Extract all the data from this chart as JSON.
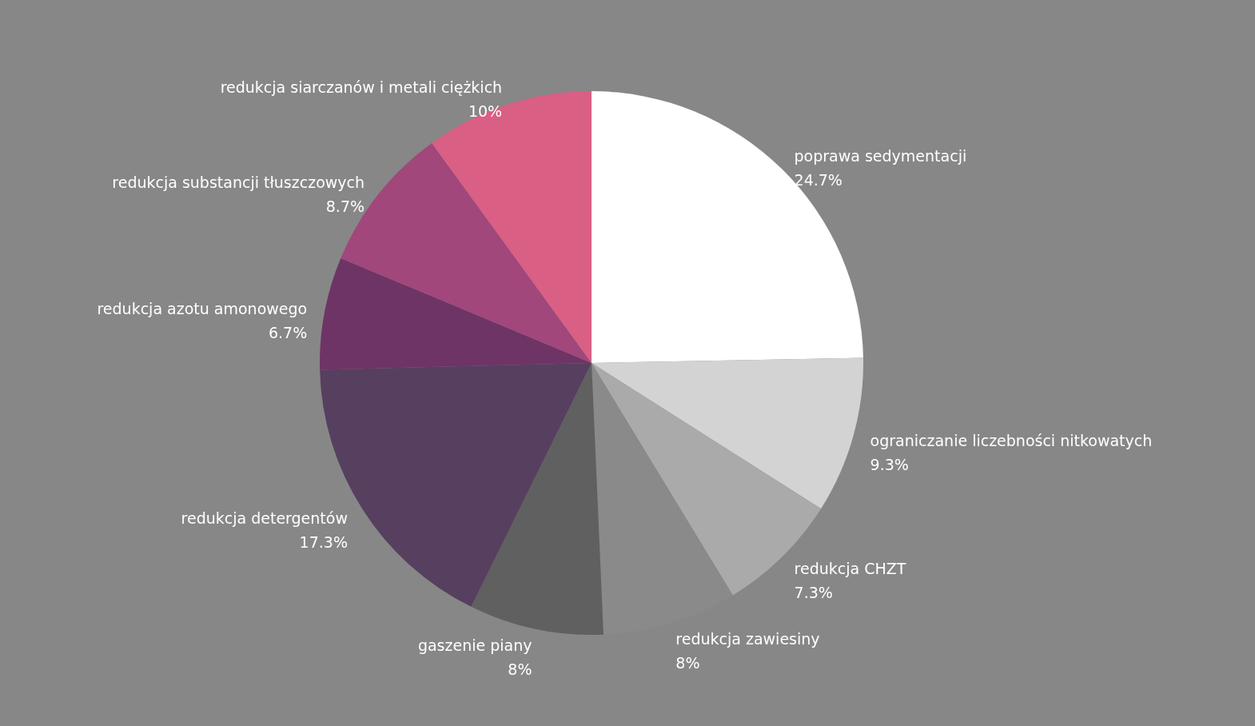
{
  "chart_data": {
    "type": "pie",
    "categories": [
      "poprawa sedymentacji",
      "ograniczanie liczebności nitkowatych",
      "redukcja CHZT",
      "redukcja zawiesiny",
      "gaszenie piany",
      "redukcja detergentów",
      "redukcja azotu amonowego",
      "redukcja substancji tłuszczowych",
      "redukcja siarczanów i metali ciężkich"
    ],
    "values": [
      24.7,
      9.3,
      7.3,
      8,
      8,
      17.3,
      6.7,
      8.7,
      10
    ],
    "colors": [
      "#ffffff",
      "#d3d3d3",
      "#aaaaaa",
      "#8a8a8a",
      "#606060",
      "#563f5f",
      "#6e3466",
      "#a1477b",
      "#d95f85"
    ],
    "value_labels": [
      "24.7%",
      "9.3%",
      "7.3%",
      "8%",
      "8%",
      "17.3%",
      "6.7%",
      "8.7%",
      "10%"
    ]
  }
}
